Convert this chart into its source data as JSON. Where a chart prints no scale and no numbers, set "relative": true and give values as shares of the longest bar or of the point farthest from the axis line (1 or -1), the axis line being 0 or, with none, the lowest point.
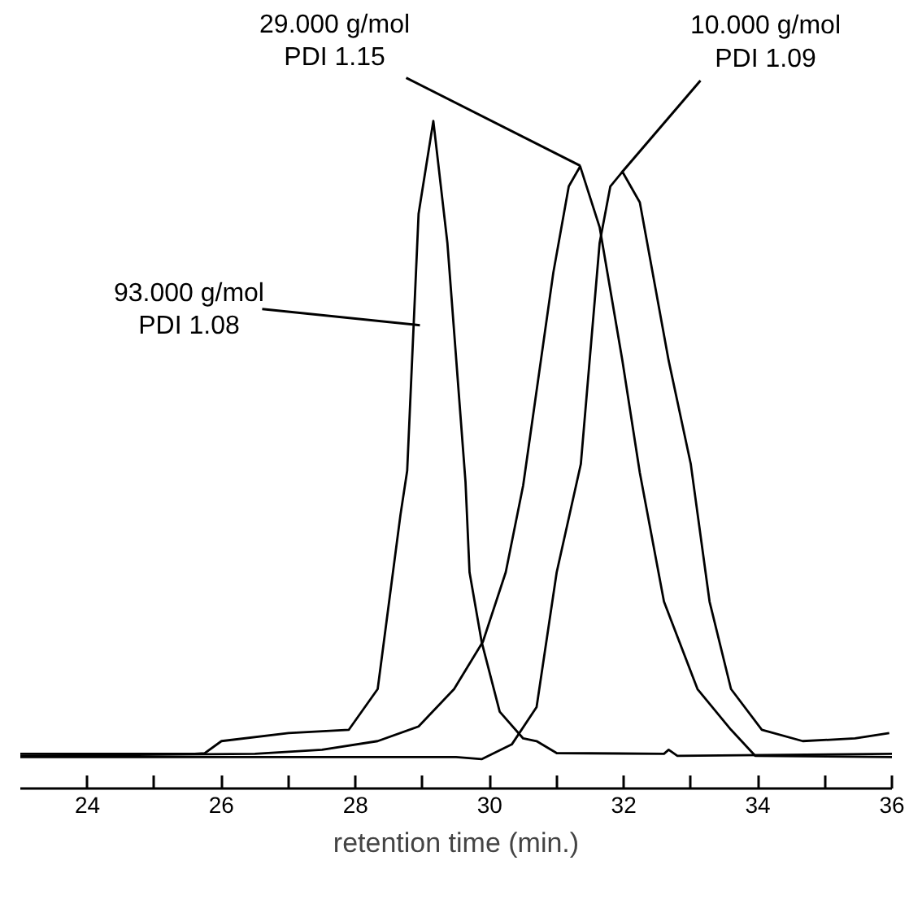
{
  "chart_data": {
    "type": "line",
    "xlabel": "retention time (min.)",
    "relative": true,
    "xlim": [
      23,
      36
    ],
    "xticks": [
      24,
      {
        "value": 25,
        "label": null
      },
      26,
      {
        "value": 27,
        "label": null
      },
      28,
      {
        "value": 29,
        "label": null
      },
      30,
      {
        "value": 31,
        "label": null
      },
      32,
      {
        "value": 33,
        "label": null
      },
      34,
      {
        "value": 35,
        "label": null
      },
      36
    ],
    "grid": false,
    "marker": "none",
    "line_style": "solid",
    "series": [
      {
        "color": "#000000",
        "x": [
          23,
          25.6,
          25.75,
          26,
          27,
          27.9,
          28.33,
          28.67,
          28.77,
          28.94,
          29.16,
          29.37,
          29.64,
          29.7,
          29.88,
          30.15,
          30.5,
          30.7,
          31.0,
          32.6,
          32.67,
          32.8,
          36
        ],
        "values": [
          0.052,
          0.052,
          0.053,
          0.071,
          0.083,
          0.088,
          0.149,
          0.41,
          0.476,
          0.861,
          1.0,
          0.817,
          0.459,
          0.324,
          0.22,
          0.115,
          0.075,
          0.071,
          0.053,
          0.052,
          0.058,
          0.049,
          0.052
        ]
      },
      {
        "color": "#000000",
        "x": [
          23,
          26.5,
          27.5,
          28.33,
          28.94,
          29.47,
          29.9,
          30.24,
          30.5,
          30.95,
          31.18,
          31.35,
          31.64,
          31.98,
          32.24,
          32.6,
          33.1,
          33.6,
          33.96,
          36
        ],
        "values": [
          0.049,
          0.052,
          0.058,
          0.071,
          0.093,
          0.149,
          0.22,
          0.324,
          0.454,
          0.773,
          0.902,
          0.932,
          0.841,
          0.641,
          0.473,
          0.28,
          0.149,
          0.088,
          0.049,
          0.047
        ]
      },
      {
        "color": "#000000",
        "x": [
          23,
          29.5,
          29.88,
          30.33,
          30.7,
          31.0,
          31.36,
          31.64,
          31.8,
          31.98,
          32.24,
          32.67,
          33.0,
          33.28,
          33.6,
          34.06,
          34.67,
          35.45,
          35.96
        ],
        "values": [
          0.047,
          0.047,
          0.044,
          0.066,
          0.122,
          0.324,
          0.486,
          0.817,
          0.902,
          0.924,
          0.878,
          0.641,
          0.486,
          0.28,
          0.149,
          0.088,
          0.071,
          0.075,
          0.083
        ]
      }
    ],
    "annotations": [
      {
        "text": "93.000 g/mol\nPDI 1.08",
        "x": 28.96,
        "y": 0.694
      },
      {
        "text": "29.000 g/mol\nPDI 1.15",
        "x": 31.35,
        "y": 0.933
      },
      {
        "text": "10.000 g/mol\nPDI 1.09",
        "x": 31.98,
        "y": 0.924
      }
    ]
  }
}
